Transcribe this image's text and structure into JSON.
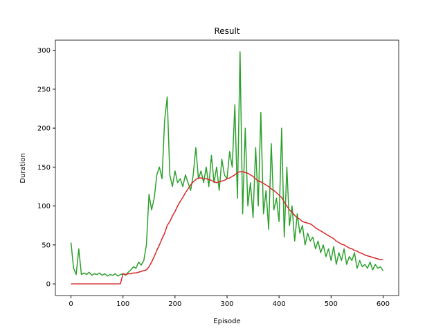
{
  "chart_data": {
    "type": "line",
    "title": "Result",
    "x_label": "Episode",
    "y_label": "Duration",
    "x": [
      0,
      5,
      10,
      15,
      20,
      25,
      30,
      35,
      40,
      45,
      50,
      55,
      60,
      65,
      70,
      75,
      80,
      85,
      90,
      95,
      100,
      105,
      110,
      115,
      120,
      125,
      130,
      135,
      140,
      145,
      150,
      155,
      160,
      165,
      170,
      175,
      180,
      185,
      190,
      195,
      200,
      205,
      210,
      215,
      220,
      225,
      230,
      235,
      240,
      245,
      250,
      255,
      260,
      265,
      270,
      275,
      280,
      285,
      290,
      295,
      300,
      305,
      310,
      315,
      320,
      325,
      330,
      335,
      340,
      345,
      350,
      355,
      360,
      365,
      370,
      375,
      380,
      385,
      390,
      395,
      400,
      405,
      410,
      415,
      420,
      425,
      430,
      435,
      440,
      445,
      450,
      455,
      460,
      465,
      470,
      475,
      480,
      485,
      490,
      495,
      500,
      505,
      510,
      515,
      520,
      525,
      530,
      535,
      540,
      545,
      550,
      555,
      560,
      565,
      570,
      575,
      580,
      585,
      590,
      595,
      600
    ],
    "series": [
      {
        "color": "#2ca02c",
        "values": [
          53,
          20,
          12,
          45,
          12,
          14,
          12,
          15,
          11,
          13,
          12,
          14,
          11,
          13,
          10,
          12,
          11,
          13,
          10,
          12,
          13,
          11,
          15,
          18,
          22,
          20,
          28,
          24,
          30,
          50,
          115,
          95,
          110,
          140,
          150,
          135,
          210,
          240,
          140,
          125,
          145,
          130,
          135,
          125,
          140,
          130,
          120,
          140,
          175,
          135,
          145,
          130,
          150,
          125,
          165,
          130,
          150,
          120,
          160,
          140,
          135,
          170,
          150,
          230,
          110,
          298,
          90,
          200,
          100,
          130,
          85,
          175,
          100,
          220,
          90,
          120,
          70,
          180,
          95,
          110,
          80,
          200,
          60,
          150,
          75,
          100,
          55,
          90,
          65,
          75,
          50,
          65,
          55,
          60,
          45,
          55,
          40,
          50,
          35,
          45,
          30,
          48,
          25,
          40,
          30,
          45,
          25,
          35,
          30,
          40,
          20,
          30,
          22,
          25,
          20,
          28,
          18,
          25,
          20,
          22,
          17
        ]
      },
      {
        "color": "#d62728",
        "values": [
          0,
          0,
          0,
          0,
          0,
          0,
          0,
          0,
          0,
          0,
          0,
          0,
          0,
          0,
          0,
          0,
          0,
          0,
          0,
          0,
          13,
          12,
          13,
          13,
          14,
          14,
          15,
          16,
          17,
          18,
          22,
          28,
          35,
          43,
          50,
          58,
          65,
          75,
          80,
          87,
          93,
          100,
          106,
          111,
          117,
          122,
          127,
          131,
          134,
          136,
          136,
          135,
          135,
          134,
          133,
          131,
          130,
          131,
          132,
          133,
          135,
          136,
          138,
          140,
          143,
          144,
          144,
          143,
          142,
          140,
          138,
          135,
          132,
          131,
          129,
          127,
          125,
          122,
          120,
          117,
          114,
          111,
          105,
          100,
          95,
          92,
          88,
          85,
          83,
          80,
          79,
          78,
          77,
          75,
          72,
          70,
          68,
          66,
          64,
          62,
          60,
          58,
          55,
          53,
          51,
          50,
          48,
          46,
          45,
          43,
          42,
          40,
          39,
          37,
          36,
          35,
          34,
          33,
          32,
          31,
          31
        ]
      }
    ],
    "xlim": [
      -30,
      630
    ],
    "ylim": [
      -15,
      313
    ],
    "xticks": [
      0,
      100,
      200,
      300,
      400,
      500,
      600
    ],
    "yticks": [
      0,
      50,
      100,
      150,
      200,
      250,
      300
    ],
    "grid": false
  }
}
